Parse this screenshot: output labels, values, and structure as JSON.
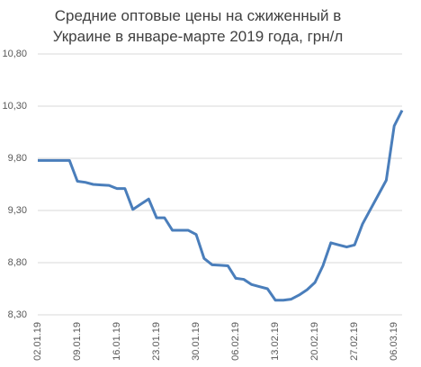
{
  "chart_data": {
    "type": "line",
    "title": "Средние оптовые цены на сжиженный в Украине в январе-марте 2019 года, грн/л",
    "categories": [
      "02.01.19",
      null,
      null,
      null,
      null,
      "09.01.19",
      null,
      null,
      null,
      null,
      "16.01.19",
      null,
      null,
      null,
      null,
      "23.01.19",
      null,
      null,
      null,
      null,
      "30.01.19",
      null,
      null,
      null,
      null,
      "06.02.19",
      null,
      null,
      null,
      null,
      "13.02.19",
      null,
      null,
      null,
      null,
      "20.02.19",
      null,
      null,
      null,
      null,
      "27.02.19",
      null,
      null,
      null,
      null,
      "06.03.19",
      null
    ],
    "values": [
      9.78,
      9.78,
      9.78,
      9.78,
      9.78,
      9.58,
      9.57,
      9.55,
      9.545,
      9.54,
      9.51,
      9.51,
      9.31,
      9.36,
      9.41,
      9.23,
      9.23,
      9.11,
      9.11,
      9.11,
      9.07,
      8.84,
      8.78,
      8.775,
      8.77,
      8.65,
      8.64,
      8.59,
      8.57,
      8.55,
      8.44,
      8.44,
      8.45,
      8.49,
      8.54,
      8.61,
      8.77,
      8.99,
      8.97,
      8.95,
      8.97,
      9.17,
      9.31,
      9.45,
      9.59,
      10.11,
      10.26
    ],
    "color": "#4a7ebb",
    "ylim": [
      8.3,
      10.8
    ],
    "yticks": [
      {
        "value": 8.3,
        "label": "8,30"
      },
      {
        "value": 8.8,
        "label": "8,80"
      },
      {
        "value": 9.3,
        "label": "9,30"
      },
      {
        "value": 9.8,
        "label": "9,80"
      },
      {
        "value": 10.3,
        "label": "10,30"
      },
      {
        "value": 10.8,
        "label": "10,80"
      }
    ],
    "grid": true
  }
}
